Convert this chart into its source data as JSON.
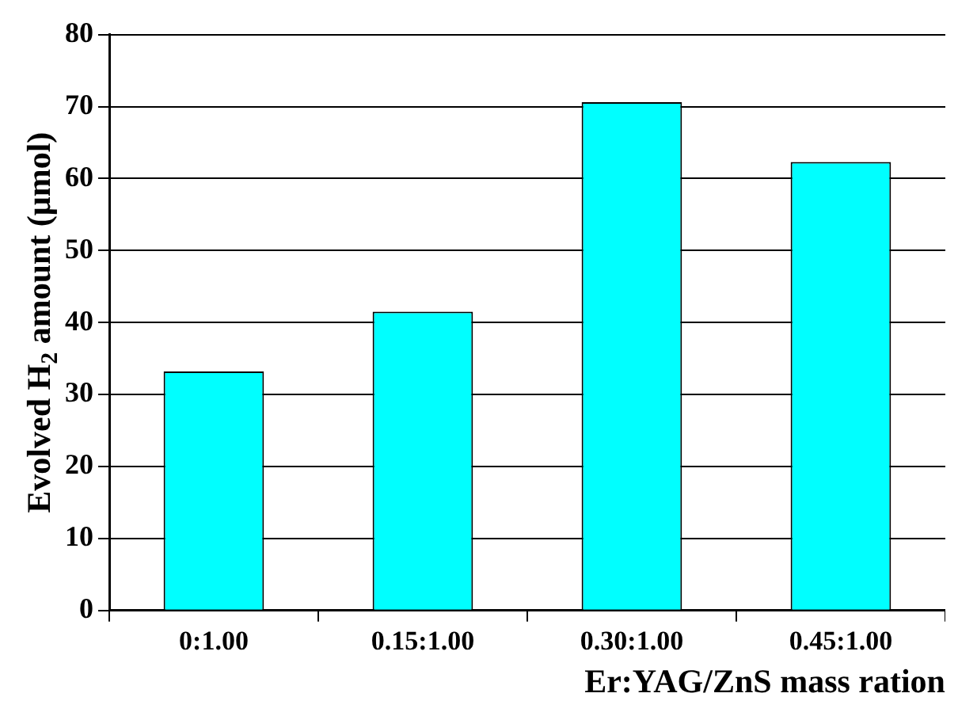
{
  "chart_data": {
    "type": "bar",
    "categories": [
      "0:1.00",
      "0.15:1.00",
      "0.30:1.00",
      "0.45:1.00"
    ],
    "values": [
      33.2,
      41.5,
      70.6,
      62.3
    ],
    "color": "#00ffff",
    "xlabel": "Er:YAG/ZnS mass ration",
    "ylabel": "Evolved H$_{2}$ amount (μmol)",
    "ylim": [
      0,
      80
    ],
    "yticks": [
      0,
      10,
      20,
      30,
      40,
      50,
      60,
      70,
      80
    ],
    "grid": "y",
    "legend": false
  }
}
